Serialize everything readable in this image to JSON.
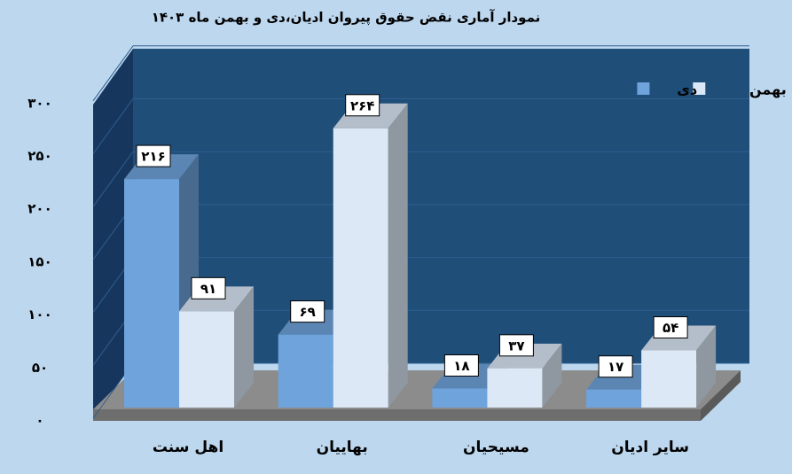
{
  "chart_data": {
    "type": "bar3d",
    "title": "نمودار آماری نقض حقوق پیروان ادیان،دی و بهمن ماه ۱۴۰۳",
    "categories": [
      "اهل سنت",
      "بهاییان",
      "مسیحیان",
      "سایر ادیان"
    ],
    "series": [
      {
        "name": "دی",
        "color": "#6fa3dc",
        "values": [
          216,
          69,
          18,
          17
        ],
        "value_labels": [
          "۲۱۶",
          "۶۹",
          "۱۸",
          "۱۷"
        ]
      },
      {
        "name": "بهمن",
        "color": "#dce8f6",
        "values": [
          91,
          264,
          37,
          54
        ],
        "value_labels": [
          "۹۱",
          "۲۶۴",
          "۳۷",
          "۵۴"
        ]
      }
    ],
    "ylim": [
      0,
      300
    ],
    "yticks": [
      {
        "value": 0,
        "label": "۰"
      },
      {
        "value": 50,
        "label": "۵۰"
      },
      {
        "value": 100,
        "label": "۱۰۰"
      },
      {
        "value": 150,
        "label": "۱۵۰"
      },
      {
        "value": 200,
        "label": "۲۰۰"
      },
      {
        "value": 250,
        "label": "۲۵۰"
      },
      {
        "value": 300,
        "label": "۳۰۰"
      }
    ],
    "grid": true,
    "legend": "upper right"
  }
}
